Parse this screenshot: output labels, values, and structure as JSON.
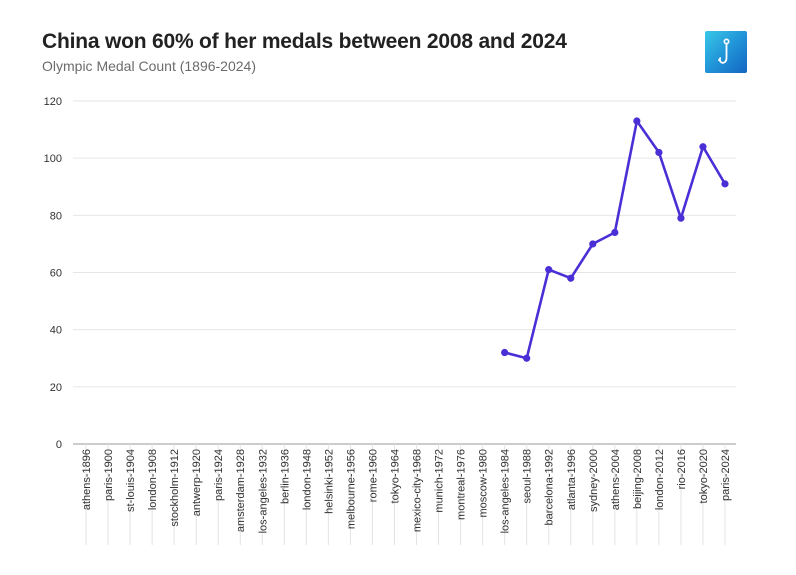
{
  "header": {
    "title": "China won 60% of her medals between 2008 and 2024",
    "subtitle": "Olympic Medal Count (1896-2024)",
    "logo_icon": "hook-icon"
  },
  "colors": {
    "line": "#4a2fd6",
    "grid": "#e6e6e6",
    "axis": "#999999",
    "logo_start": "#39c8e8",
    "logo_end": "#1466c2"
  },
  "chart_data": {
    "type": "line",
    "title": "China won 60% of her medals between 2008 and 2024",
    "subtitle": "Olympic Medal Count (1896-2024)",
    "xlabel": "",
    "ylabel": "",
    "ylim": [
      0,
      120
    ],
    "yticks": [
      0,
      20,
      40,
      60,
      80,
      100,
      120
    ],
    "grid": true,
    "legend": "none",
    "categories": [
      "athens-1896",
      "paris-1900",
      "st-louis-1904",
      "london-1908",
      "stockholm-1912",
      "antwerp-1920",
      "paris-1924",
      "amsterdam-1928",
      "los-angeles-1932",
      "berlin-1936",
      "london-1948",
      "helsinki-1952",
      "melbourne-1956",
      "rome-1960",
      "tokyo-1964",
      "mexico-city-1968",
      "munich-1972",
      "montreal-1976",
      "moscow-1980",
      "los-angeles-1984",
      "seoul-1988",
      "barcelona-1992",
      "atlanta-1996",
      "sydney-2000",
      "athens-2004",
      "beijing-2008",
      "london-2012",
      "rio-2016",
      "tokyo-2020",
      "paris-2024"
    ],
    "series": [
      {
        "values": [
          null,
          null,
          null,
          null,
          null,
          null,
          null,
          null,
          null,
          null,
          null,
          null,
          null,
          null,
          null,
          null,
          null,
          null,
          null,
          32,
          30,
          61,
          58,
          70,
          74,
          113,
          102,
          79,
          104,
          91
        ]
      }
    ]
  }
}
